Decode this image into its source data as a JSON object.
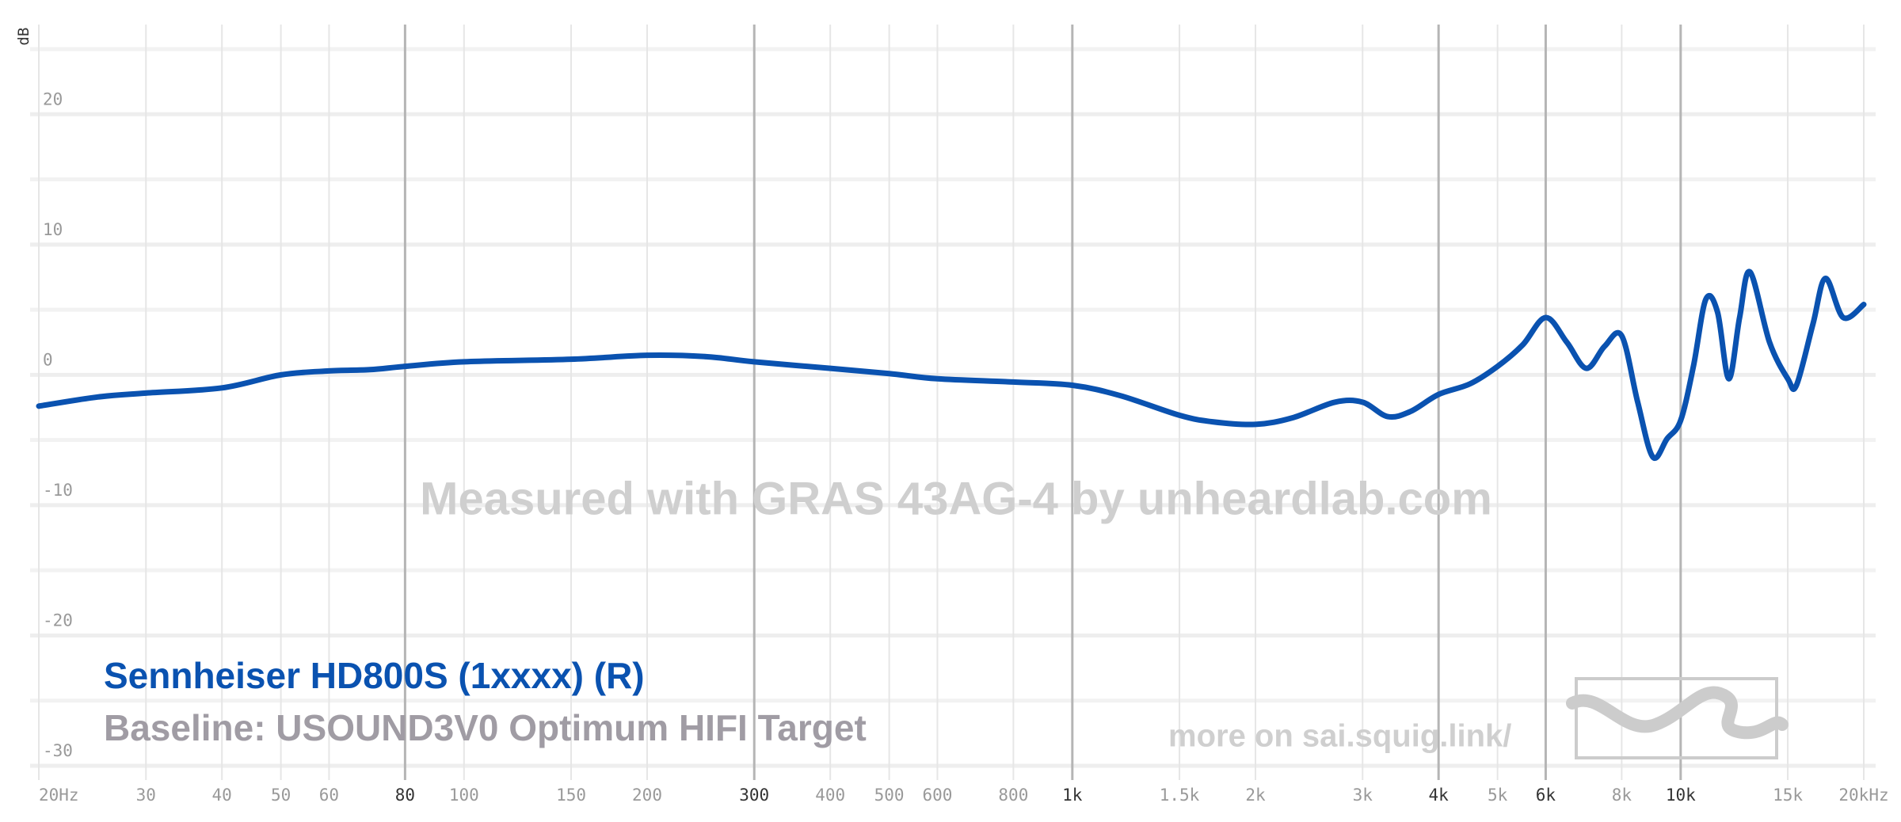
{
  "chart_data": {
    "type": "line",
    "y_label": "dB",
    "x_scale": "log",
    "xlim": [
      20,
      20000
    ],
    "ylim": [
      -30,
      25
    ],
    "xticks": [
      {
        "value": 20,
        "label": "20Hz"
      },
      30,
      40,
      50,
      60,
      80,
      100,
      150,
      200,
      300,
      400,
      500,
      600,
      800,
      {
        "value": 1000,
        "label": "1k"
      },
      {
        "value": 1500,
        "label": "1.5k"
      },
      {
        "value": 2000,
        "label": "2k"
      },
      {
        "value": 3000,
        "label": "3k"
      },
      {
        "value": 4000,
        "label": "4k"
      },
      {
        "value": 5000,
        "label": "5k"
      },
      {
        "value": 6000,
        "label": "6k"
      },
      {
        "value": 8000,
        "label": "8k"
      },
      {
        "value": 10000,
        "label": "10k"
      },
      {
        "value": 15000,
        "label": "15k"
      },
      {
        "value": 20000,
        "label": "20kHz"
      }
    ],
    "emphasized_xticks": [
      80,
      300,
      1000,
      4000,
      6000,
      10000
    ],
    "yticks": [
      -30,
      -20,
      -10,
      0,
      10,
      20
    ],
    "minor_yticks": [
      -25,
      -15,
      -5,
      5,
      15,
      25
    ],
    "grid": true,
    "x": [
      20,
      25,
      30,
      40,
      50,
      60,
      70,
      80,
      100,
      150,
      200,
      250,
      300,
      400,
      500,
      600,
      800,
      1000,
      1200,
      1500,
      1700,
      2000,
      2300,
      2700,
      3000,
      3300,
      3600,
      4000,
      4500,
      5000,
      5500,
      6000,
      6500,
      7000,
      7500,
      8000,
      8500,
      9000,
      9500,
      10000,
      10500,
      11000,
      11500,
      12000,
      12500,
      13000,
      14000,
      15000,
      15500,
      16500,
      17300,
      18500,
      20000
    ],
    "series": [
      {
        "name": "Sennheiser HD800S (1xxxx) (R)",
        "color": "#0a52b0",
        "values": [
          -2.4,
          -1.7,
          -1.4,
          -1.0,
          0,
          0.3,
          0.4,
          0.65,
          1.0,
          1.2,
          1.5,
          1.4,
          1.0,
          0.5,
          0.1,
          -0.3,
          -0.55,
          -0.8,
          -1.6,
          -3.1,
          -3.6,
          -3.8,
          -3.3,
          -2.1,
          -2.1,
          -3.2,
          -2.8,
          -1.5,
          -0.7,
          0.65,
          2.3,
          4.4,
          2.5,
          0.5,
          2.2,
          3.0,
          -2.1,
          -6.3,
          -4.9,
          -3.5,
          0.7,
          5.8,
          4.8,
          -0.3,
          4.4,
          7.9,
          2.5,
          -0.3,
          -0.8,
          3.9,
          7.4,
          4.4,
          5.4
        ]
      }
    ],
    "baseline": "Baseline: USOUND3V0 Optimum HIFI Target",
    "watermark": "Measured with GRAS 43AG-4 by unheardlab.com",
    "footer_link": "more on sai.squig.link/"
  }
}
